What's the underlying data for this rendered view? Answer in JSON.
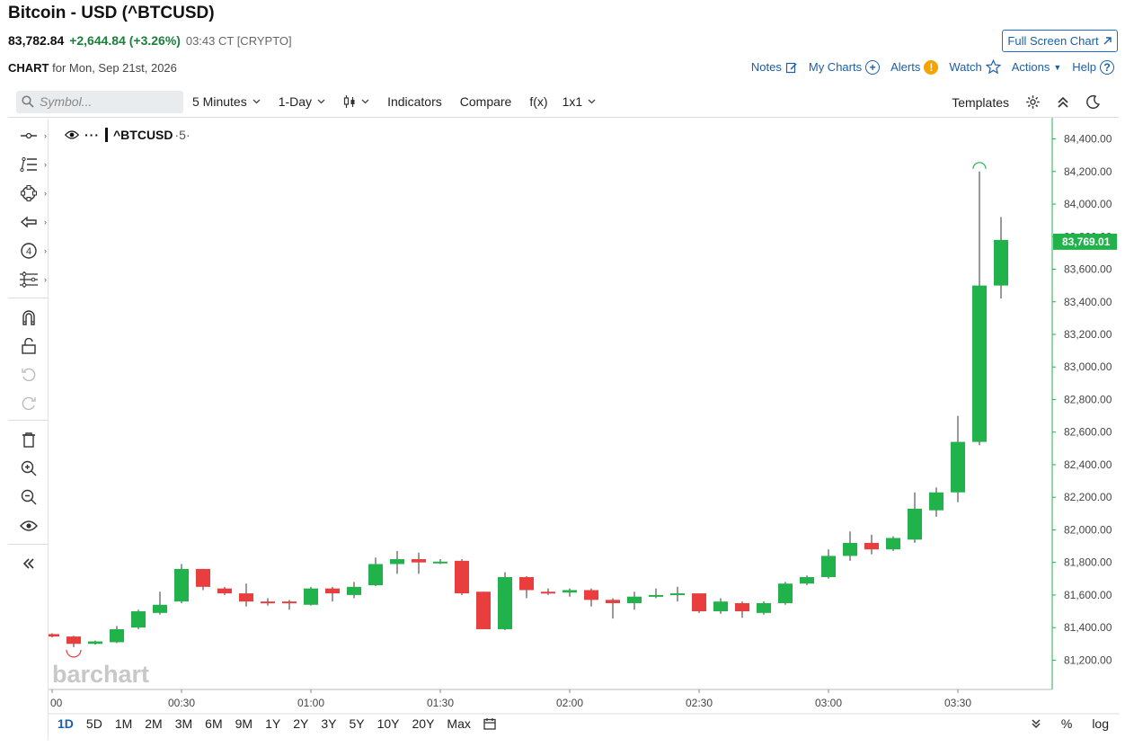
{
  "header": {
    "title": "Bitcoin - USD (^BTCUSD)",
    "last": "83,782.84",
    "change": "+2,644.84 (+3.26%)",
    "time": "03:43 CT [CRYPTO]",
    "full_screen": "Full Screen Chart"
  },
  "chart_label": {
    "prefix": "CHART",
    "date": "for Mon, Sep 21st, 2026"
  },
  "links": {
    "notes": "Notes",
    "my_charts": "My Charts",
    "alerts": "Alerts",
    "watch": "Watch",
    "actions": "Actions",
    "help": "Help"
  },
  "toolbar": {
    "search_placeholder": "Symbol...",
    "interval": "5 Minutes",
    "range": "1-Day",
    "indicators": "Indicators",
    "compare": "Compare",
    "fx": "f(x)",
    "layout": "1x1",
    "templates": "Templates"
  },
  "symbol_legend": "^BTCUSD",
  "symbol_suffix": "·5·",
  "watermark": "barchart",
  "bottom": {
    "ranges": [
      "1D",
      "5D",
      "1M",
      "2M",
      "3M",
      "6M",
      "9M",
      "1Y",
      "2Y",
      "3Y",
      "5Y",
      "10Y",
      "20Y",
      "Max"
    ],
    "active": "1D",
    "percent": "%",
    "log": "log"
  },
  "colors": {
    "up": "#22b24c",
    "down": "#e83e3e",
    "accent": "#1a5fa8",
    "last_price_bg": "#22b24c"
  },
  "chart_data": {
    "type": "candlestick",
    "symbol": "^BTCUSD",
    "interval": "5 Minutes",
    "x_ticks": [
      "00",
      "00:30",
      "01:00",
      "01:30",
      "02:00",
      "02:30",
      "03:00",
      "03:30"
    ],
    "y_ticks": [
      81200,
      81400,
      81600,
      81800,
      82000,
      82200,
      82400,
      82600,
      82800,
      83000,
      83200,
      83400,
      83600,
      83800,
      84000,
      84200,
      84400
    ],
    "y_tick_labels": [
      "81,200.00",
      "81,400.00",
      "81,600.00",
      "81,800.00",
      "82,000.00",
      "82,200.00",
      "82,400.00",
      "82,600.00",
      "82,800.00",
      "83,000.00",
      "83,200.00",
      "83,400.00",
      "83,600.00",
      "83,800.00",
      "84,000.00",
      "84,200.00",
      "84,400.00"
    ],
    "ylim": [
      81020,
      84530
    ],
    "last_price": 83769.01,
    "last_price_label": "83,769.01",
    "candles": [
      {
        "t": "00:00",
        "o": 81360,
        "h": 81365,
        "l": 81340,
        "c": 81345
      },
      {
        "t": "00:05",
        "o": 81345,
        "h": 81350,
        "l": 81280,
        "c": 81300
      },
      {
        "t": "00:10",
        "o": 81300,
        "h": 81320,
        "l": 81295,
        "c": 81315
      },
      {
        "t": "00:15",
        "o": 81310,
        "h": 81410,
        "l": 81305,
        "c": 81390
      },
      {
        "t": "00:20",
        "o": 81400,
        "h": 81510,
        "l": 81390,
        "c": 81500
      },
      {
        "t": "00:25",
        "o": 81490,
        "h": 81620,
        "l": 81480,
        "c": 81540
      },
      {
        "t": "00:30",
        "o": 81560,
        "h": 81790,
        "l": 81550,
        "c": 81760
      },
      {
        "t": "00:35",
        "o": 81760,
        "h": 81760,
        "l": 81630,
        "c": 81650
      },
      {
        "t": "00:40",
        "o": 81640,
        "h": 81650,
        "l": 81600,
        "c": 81610
      },
      {
        "t": "00:45",
        "o": 81610,
        "h": 81670,
        "l": 81530,
        "c": 81560
      },
      {
        "t": "00:50",
        "o": 81560,
        "h": 81580,
        "l": 81535,
        "c": 81555
      },
      {
        "t": "00:55",
        "o": 81560,
        "h": 81570,
        "l": 81510,
        "c": 81550
      },
      {
        "t": "01:00",
        "o": 81540,
        "h": 81650,
        "l": 81535,
        "c": 81640
      },
      {
        "t": "01:05",
        "o": 81640,
        "h": 81650,
        "l": 81560,
        "c": 81610
      },
      {
        "t": "01:10",
        "o": 81600,
        "h": 81680,
        "l": 81580,
        "c": 81650
      },
      {
        "t": "01:15",
        "o": 81660,
        "h": 81830,
        "l": 81655,
        "c": 81790
      },
      {
        "t": "01:20",
        "o": 81790,
        "h": 81870,
        "l": 81730,
        "c": 81820
      },
      {
        "t": "01:25",
        "o": 81820,
        "h": 81860,
        "l": 81730,
        "c": 81800
      },
      {
        "t": "01:30",
        "o": 81800,
        "h": 81820,
        "l": 81790,
        "c": 81805
      },
      {
        "t": "01:35",
        "o": 81810,
        "h": 81820,
        "l": 81600,
        "c": 81610
      },
      {
        "t": "01:40",
        "o": 81620,
        "h": 81620,
        "l": 81390,
        "c": 81390
      },
      {
        "t": "01:45",
        "o": 81390,
        "h": 81740,
        "l": 81385,
        "c": 81710
      },
      {
        "t": "01:50",
        "o": 81710,
        "h": 81715,
        "l": 81580,
        "c": 81630
      },
      {
        "t": "01:55",
        "o": 81620,
        "h": 81640,
        "l": 81600,
        "c": 81615
      },
      {
        "t": "02:00",
        "o": 81615,
        "h": 81640,
        "l": 81590,
        "c": 81630
      },
      {
        "t": "02:05",
        "o": 81630,
        "h": 81640,
        "l": 81530,
        "c": 81570
      },
      {
        "t": "02:10",
        "o": 81570,
        "h": 81580,
        "l": 81455,
        "c": 81550
      },
      {
        "t": "02:15",
        "o": 81550,
        "h": 81620,
        "l": 81510,
        "c": 81590
      },
      {
        "t": "02:20",
        "o": 81590,
        "h": 81640,
        "l": 81580,
        "c": 81600
      },
      {
        "t": "02:25",
        "o": 81600,
        "h": 81650,
        "l": 81560,
        "c": 81610
      },
      {
        "t": "02:30",
        "o": 81610,
        "h": 81610,
        "l": 81490,
        "c": 81500
      },
      {
        "t": "02:35",
        "o": 81500,
        "h": 81580,
        "l": 81485,
        "c": 81560
      },
      {
        "t": "02:40",
        "o": 81550,
        "h": 81560,
        "l": 81460,
        "c": 81500
      },
      {
        "t": "02:45",
        "o": 81490,
        "h": 81560,
        "l": 81480,
        "c": 81550
      },
      {
        "t": "02:50",
        "o": 81550,
        "h": 81680,
        "l": 81540,
        "c": 81670
      },
      {
        "t": "02:55",
        "o": 81670,
        "h": 81720,
        "l": 81660,
        "c": 81710
      },
      {
        "t": "03:00",
        "o": 81710,
        "h": 81880,
        "l": 81700,
        "c": 81840
      },
      {
        "t": "03:05",
        "o": 81840,
        "h": 81990,
        "l": 81810,
        "c": 81920
      },
      {
        "t": "03:10",
        "o": 81920,
        "h": 81970,
        "l": 81850,
        "c": 81880
      },
      {
        "t": "03:15",
        "o": 81880,
        "h": 81960,
        "l": 81870,
        "c": 81950
      },
      {
        "t": "03:20",
        "o": 81940,
        "h": 82230,
        "l": 81920,
        "c": 82130
      },
      {
        "t": "03:25",
        "o": 82120,
        "h": 82260,
        "l": 82080,
        "c": 82230
      },
      {
        "t": "03:30",
        "o": 82230,
        "h": 82700,
        "l": 82170,
        "c": 82540
      },
      {
        "t": "03:35",
        "o": 82540,
        "h": 84200,
        "l": 82520,
        "c": 83500
      },
      {
        "t": "03:40",
        "o": 83500,
        "h": 83920,
        "l": 83420,
        "c": 83780
      }
    ]
  }
}
